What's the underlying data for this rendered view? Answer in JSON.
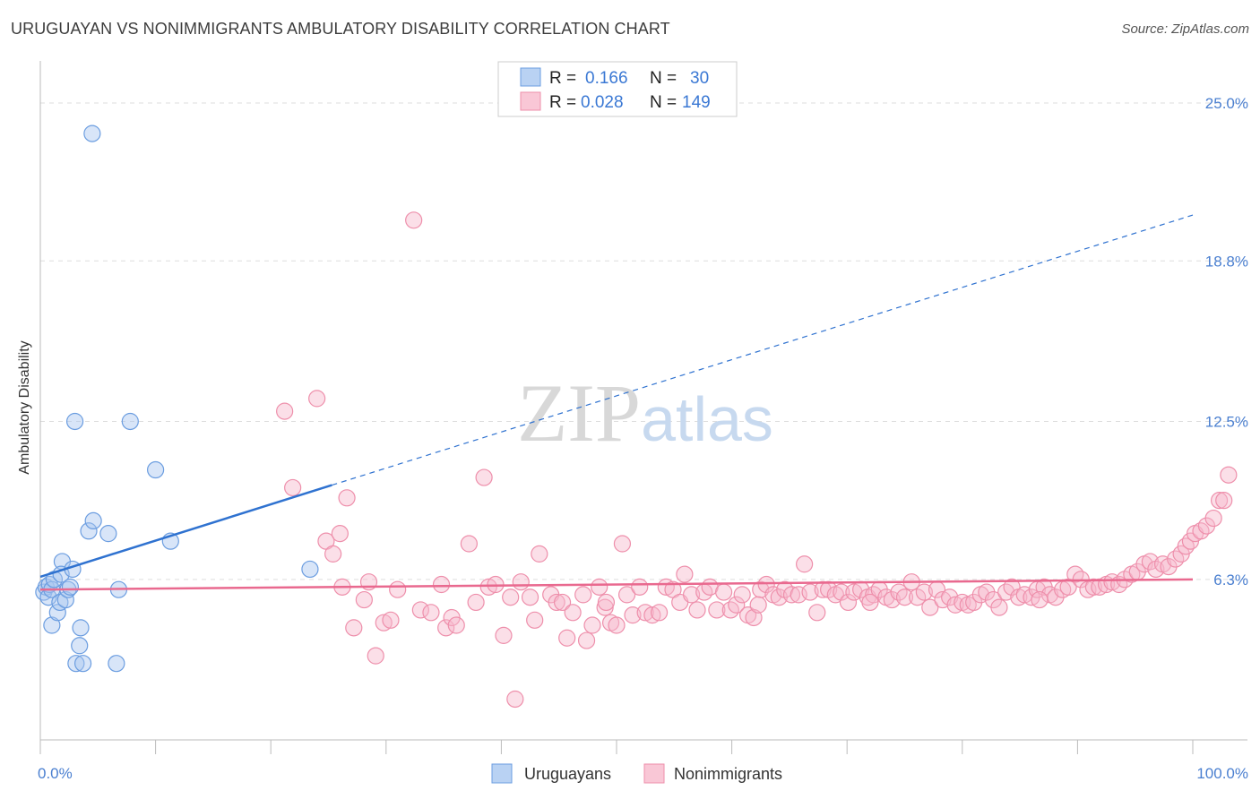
{
  "title": "URUGUAYAN VS NONIMMIGRANTS AMBULATORY DISABILITY CORRELATION CHART",
  "source": "Source: ZipAtlas.com",
  "watermark": {
    "zip": "ZIP",
    "atlas": "atlas"
  },
  "chart_data": {
    "type": "scatter",
    "title": "URUGUAYAN VS NONIMMIGRANTS AMBULATORY DISABILITY CORRELATION CHART",
    "xlabel": "",
    "ylabel": "Ambulatory Disability",
    "xlim": [
      0,
      100
    ],
    "ylim": [
      0,
      26.3
    ],
    "x_tick_labels": [
      "0.0%",
      "100.0%"
    ],
    "y_ticks": [
      6.3,
      12.5,
      18.8,
      25.0
    ],
    "y_tick_labels": [
      "6.3%",
      "12.5%",
      "18.8%",
      "25.0%"
    ],
    "grid": "horizontal dashed",
    "legend_position": "top-center",
    "colors": {
      "uruguayans": "#6b9de0",
      "nonimmigrants": "#ee8fab",
      "blue_line": "#2f72d0",
      "pink_line": "#e9698f"
    },
    "stats": [
      {
        "r_label": "R =",
        "r_value": "0.166",
        "n_label": "N =",
        "n_value": "30"
      },
      {
        "r_label": "R =",
        "r_value": "0.028",
        "n_label": "N =",
        "n_value": "149"
      }
    ],
    "series": [
      {
        "name": "Uruguayans",
        "points": [
          [
            0.3,
            5.8
          ],
          [
            0.5,
            6.0
          ],
          [
            0.7,
            5.6
          ],
          [
            0.8,
            6.1
          ],
          [
            1.0,
            5.9
          ],
          [
            1.2,
            6.3
          ],
          [
            1.0,
            4.5
          ],
          [
            1.5,
            5.0
          ],
          [
            1.7,
            5.4
          ],
          [
            1.9,
            7.0
          ],
          [
            1.8,
            6.5
          ],
          [
            2.2,
            5.5
          ],
          [
            2.4,
            5.9
          ],
          [
            2.6,
            6.0
          ],
          [
            2.8,
            6.7
          ],
          [
            3.0,
            12.5
          ],
          [
            3.1,
            3.0
          ],
          [
            3.4,
            3.7
          ],
          [
            3.5,
            4.4
          ],
          [
            3.7,
            3.0
          ],
          [
            4.2,
            8.2
          ],
          [
            4.6,
            8.6
          ],
          [
            5.9,
            8.1
          ],
          [
            6.6,
            3.0
          ],
          [
            6.8,
            5.9
          ],
          [
            7.8,
            12.5
          ],
          [
            10.0,
            10.6
          ],
          [
            11.3,
            7.8
          ],
          [
            23.4,
            6.7
          ],
          [
            4.5,
            23.8
          ]
        ]
      },
      {
        "name": "Nonimmigrants",
        "points": [
          [
            21.2,
            12.9
          ],
          [
            21.9,
            9.9
          ],
          [
            24.0,
            13.4
          ],
          [
            24.8,
            7.8
          ],
          [
            25.4,
            7.3
          ],
          [
            26.0,
            8.1
          ],
          [
            26.2,
            6.0
          ],
          [
            26.6,
            9.5
          ],
          [
            27.2,
            4.4
          ],
          [
            28.1,
            5.5
          ],
          [
            28.5,
            6.2
          ],
          [
            29.1,
            3.3
          ],
          [
            29.8,
            4.6
          ],
          [
            30.4,
            4.7
          ],
          [
            31.0,
            5.9
          ],
          [
            32.4,
            20.4
          ],
          [
            33.0,
            5.1
          ],
          [
            33.9,
            5.0
          ],
          [
            34.8,
            6.1
          ],
          [
            35.2,
            4.4
          ],
          [
            35.7,
            4.8
          ],
          [
            36.1,
            4.5
          ],
          [
            37.2,
            7.7
          ],
          [
            37.8,
            5.4
          ],
          [
            38.5,
            10.3
          ],
          [
            38.9,
            6.0
          ],
          [
            39.5,
            6.1
          ],
          [
            40.2,
            4.1
          ],
          [
            40.8,
            5.6
          ],
          [
            41.2,
            1.6
          ],
          [
            41.7,
            6.2
          ],
          [
            42.5,
            5.6
          ],
          [
            42.9,
            4.7
          ],
          [
            43.3,
            7.3
          ],
          [
            44.3,
            5.7
          ],
          [
            44.8,
            5.4
          ],
          [
            45.3,
            5.4
          ],
          [
            45.7,
            4.0
          ],
          [
            46.2,
            5.0
          ],
          [
            47.1,
            5.7
          ],
          [
            47.4,
            3.9
          ],
          [
            47.9,
            4.5
          ],
          [
            48.5,
            6.0
          ],
          [
            49.0,
            5.2
          ],
          [
            49.5,
            4.6
          ],
          [
            50.0,
            4.5
          ],
          [
            50.5,
            7.7
          ],
          [
            50.9,
            5.7
          ],
          [
            51.4,
            4.9
          ],
          [
            52.0,
            6.0
          ],
          [
            52.5,
            5.0
          ],
          [
            53.1,
            4.9
          ],
          [
            53.7,
            5.0
          ],
          [
            54.3,
            6.0
          ],
          [
            54.9,
            5.9
          ],
          [
            55.5,
            5.4
          ],
          [
            55.9,
            6.5
          ],
          [
            56.5,
            5.7
          ],
          [
            57.0,
            5.1
          ],
          [
            57.6,
            5.8
          ],
          [
            58.1,
            6.0
          ],
          [
            58.7,
            5.1
          ],
          [
            59.3,
            5.8
          ],
          [
            59.9,
            5.1
          ],
          [
            60.4,
            5.3
          ],
          [
            60.9,
            5.7
          ],
          [
            61.4,
            4.9
          ],
          [
            61.9,
            4.8
          ],
          [
            62.5,
            5.9
          ],
          [
            63.0,
            6.1
          ],
          [
            63.6,
            5.7
          ],
          [
            64.1,
            5.6
          ],
          [
            64.6,
            5.9
          ],
          [
            65.2,
            5.7
          ],
          [
            65.8,
            5.7
          ],
          [
            66.3,
            6.9
          ],
          [
            66.8,
            5.8
          ],
          [
            67.4,
            5.0
          ],
          [
            67.9,
            5.9
          ],
          [
            68.4,
            5.9
          ],
          [
            69.0,
            5.7
          ],
          [
            69.5,
            5.8
          ],
          [
            70.1,
            5.4
          ],
          [
            70.6,
            5.8
          ],
          [
            71.2,
            5.9
          ],
          [
            71.8,
            5.6
          ],
          [
            72.3,
            5.7
          ],
          [
            72.8,
            5.9
          ],
          [
            73.4,
            5.6
          ],
          [
            73.9,
            5.5
          ],
          [
            74.5,
            5.8
          ],
          [
            75.0,
            5.6
          ],
          [
            75.6,
            6.2
          ],
          [
            76.1,
            5.6
          ],
          [
            76.7,
            5.8
          ],
          [
            77.2,
            5.2
          ],
          [
            77.8,
            5.9
          ],
          [
            78.3,
            5.5
          ],
          [
            78.9,
            5.6
          ],
          [
            79.4,
            5.3
          ],
          [
            80.0,
            5.4
          ],
          [
            80.5,
            5.3
          ],
          [
            81.0,
            5.4
          ],
          [
            81.6,
            5.7
          ],
          [
            82.1,
            5.8
          ],
          [
            82.7,
            5.5
          ],
          [
            83.2,
            5.2
          ],
          [
            83.8,
            5.8
          ],
          [
            84.3,
            6.0
          ],
          [
            84.9,
            5.6
          ],
          [
            85.4,
            5.7
          ],
          [
            86.0,
            5.6
          ],
          [
            86.5,
            5.9
          ],
          [
            87.1,
            6.0
          ],
          [
            87.6,
            5.7
          ],
          [
            88.1,
            5.6
          ],
          [
            88.7,
            5.9
          ],
          [
            89.2,
            6.0
          ],
          [
            89.8,
            6.5
          ],
          [
            90.3,
            6.3
          ],
          [
            90.9,
            5.9
          ],
          [
            91.4,
            6.0
          ],
          [
            91.9,
            6.0
          ],
          [
            92.5,
            6.1
          ],
          [
            93.0,
            6.2
          ],
          [
            93.6,
            6.1
          ],
          [
            94.1,
            6.3
          ],
          [
            94.7,
            6.5
          ],
          [
            95.2,
            6.6
          ],
          [
            95.8,
            6.9
          ],
          [
            96.3,
            7.0
          ],
          [
            96.8,
            6.7
          ],
          [
            97.4,
            6.9
          ],
          [
            97.9,
            6.8
          ],
          [
            98.5,
            7.1
          ],
          [
            99.0,
            7.3
          ],
          [
            99.4,
            7.6
          ],
          [
            99.8,
            7.8
          ],
          [
            100.2,
            8.1
          ],
          [
            100.7,
            8.2
          ],
          [
            101.2,
            8.4
          ],
          [
            101.8,
            8.7
          ],
          [
            102.3,
            9.4
          ],
          [
            102.7,
            9.4
          ],
          [
            103.1,
            10.4
          ],
          [
            49.1,
            5.4
          ],
          [
            62.3,
            5.3
          ],
          [
            72.0,
            5.4
          ],
          [
            86.7,
            5.5
          ]
        ]
      }
    ],
    "trend_lines": [
      {
        "series": "Uruguayans",
        "solid_from": [
          0,
          6.4
        ],
        "solid_to": [
          25.3,
          10.0
        ],
        "dashed_to": [
          100,
          20.6
        ]
      },
      {
        "series": "Nonimmigrants",
        "from": [
          0,
          5.9
        ],
        "to": [
          100,
          6.3
        ]
      }
    ]
  },
  "legend": {
    "items": [
      "Uruguayans",
      "Nonimmigrants"
    ]
  }
}
